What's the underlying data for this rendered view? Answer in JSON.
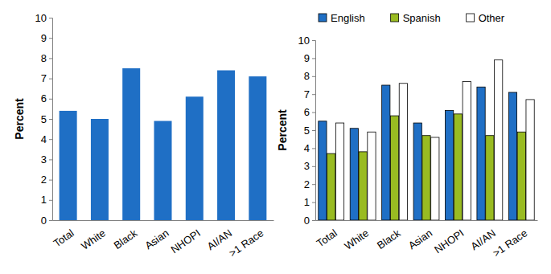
{
  "chart_data": [
    {
      "type": "bar",
      "categories": [
        "Total",
        "White",
        "Black",
        "Asian",
        "NHOPI",
        "AI/AN",
        ">1 Race"
      ],
      "values": [
        5.4,
        5.0,
        7.5,
        4.9,
        6.1,
        7.4,
        7.1
      ],
      "color": "#1f6fc5",
      "y_label": "Percent",
      "ylim": [
        0,
        10
      ],
      "yticks": [
        0,
        1,
        2,
        3,
        4,
        5,
        6,
        7,
        8,
        9,
        10
      ],
      "grid": false
    },
    {
      "type": "bar",
      "categories": [
        "Total",
        "White",
        "Black",
        "Asian",
        "NHOPI",
        "AI/AN",
        ">1 Race"
      ],
      "series": [
        {
          "name": "English",
          "color": "#1f6fc5",
          "values": [
            5.5,
            5.1,
            7.5,
            5.4,
            6.1,
            7.4,
            7.1
          ]
        },
        {
          "name": "Spanish",
          "color": "#99bb22",
          "values": [
            3.7,
            3.8,
            5.8,
            4.7,
            5.9,
            4.7,
            4.9
          ]
        },
        {
          "name": "Other",
          "color": "#ffffff",
          "values": [
            5.4,
            4.9,
            7.6,
            4.6,
            7.7,
            8.9,
            6.7
          ]
        }
      ],
      "y_label": "Percent",
      "ylim": [
        0,
        10
      ],
      "yticks": [
        0,
        1,
        2,
        3,
        4,
        5,
        6,
        7,
        8,
        9,
        10
      ],
      "legend": "top",
      "grid": false
    }
  ]
}
